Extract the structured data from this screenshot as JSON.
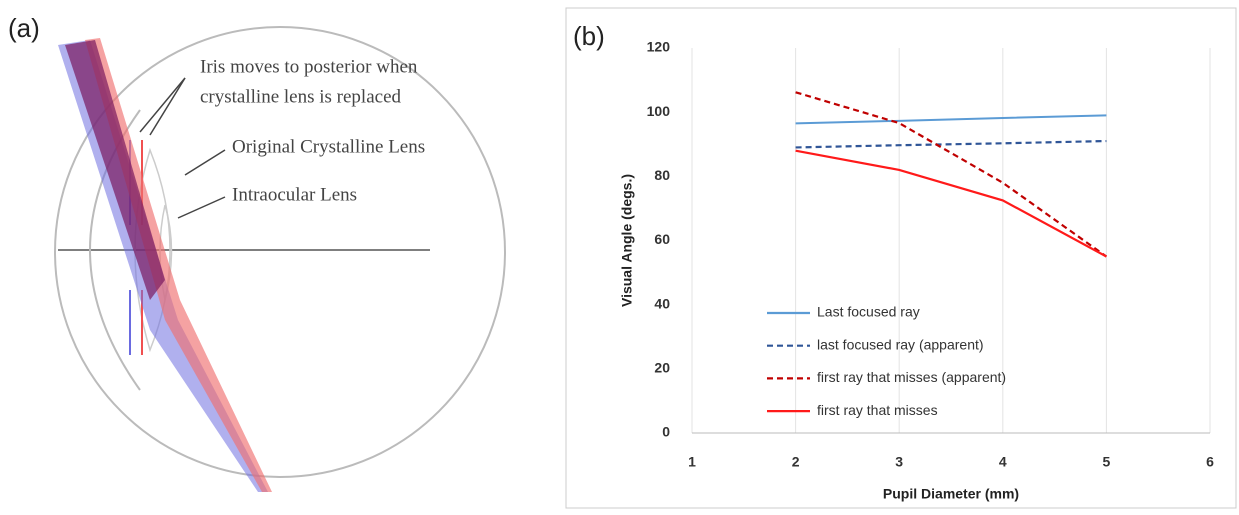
{
  "diagram": {
    "panel_label": "(a)",
    "annotations": [
      "Iris moves to posterior when",
      "crystalline lens is replaced",
      "Original Crystalline Lens",
      "Intraocular Lens"
    ]
  },
  "chart_data": {
    "type": "line",
    "panel_label": "(b)",
    "x_label": "Pupil Diameter (mm)",
    "y_label": "Visual Angle (degs.)",
    "x": [
      2,
      3,
      4,
      5
    ],
    "series": [
      {
        "name": "Last focused ray",
        "color": "#5b9bd5",
        "style": "solid",
        "values": [
          96.5,
          97.3,
          98.2,
          99
        ]
      },
      {
        "name": "last focused ray (apparent)",
        "color": "#2f5597",
        "style": "dashed",
        "values": [
          89,
          89.7,
          90.3,
          91
        ]
      },
      {
        "name": "first ray that misses (apparent)",
        "color": "#c00000",
        "style": "dashed",
        "values": [
          106.2,
          96.6,
          78,
          55
        ]
      },
      {
        "name": "first ray that misses",
        "color": "#ff1a1a",
        "style": "solid",
        "values": [
          88,
          82,
          72.5,
          55
        ]
      }
    ],
    "xlim": [
      1,
      6
    ],
    "xticks": [
      1,
      2,
      3,
      4,
      5,
      6
    ],
    "ylim": [
      0,
      120
    ],
    "yticks": [
      0,
      20,
      40,
      60,
      80,
      100,
      120
    ],
    "grid": "x",
    "legend": "lower-left"
  }
}
